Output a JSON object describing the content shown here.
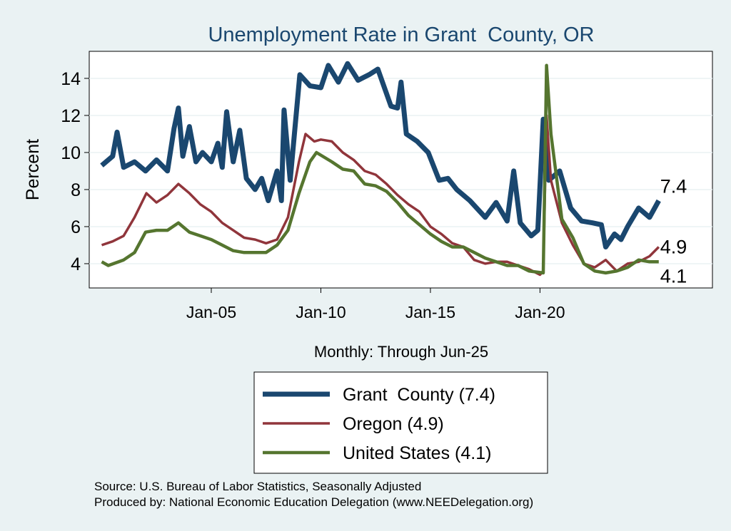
{
  "chart_data": {
    "type": "line",
    "title": "Unemployment Rate in Grant  County, OR",
    "xlabel": "Monthly: Through Jun-25",
    "ylabel": "Percent",
    "notes": [
      "Source: U.S. Bureau of Labor Statistics, Seasonally Adjusted",
      "Produced by: National Economic Education Delegation (www.NEEDelegation.org)"
    ],
    "xlim": [
      1999.43,
      2027.87
    ],
    "ylim": [
      2.69,
      15.46
    ],
    "xticks": [
      {
        "value": 2005,
        "label": "Jan-05"
      },
      {
        "value": 2010,
        "label": "Jan-10"
      },
      {
        "value": 2015,
        "label": "Jan-15"
      },
      {
        "value": 2020,
        "label": "Jan-20"
      }
    ],
    "yticks": [
      4,
      6,
      8,
      10,
      12,
      14
    ],
    "grid": true,
    "series": [
      {
        "name": "Grant  County (7.4)",
        "color": "#1a476f",
        "width": 7,
        "end_label": "7.4",
        "x": [
          2000.0,
          2000.5,
          2000.7,
          2001.0,
          2001.5,
          2002.0,
          2002.5,
          2003.0,
          2003.3,
          2003.5,
          2003.7,
          2004.0,
          2004.3,
          2004.6,
          2005.0,
          2005.3,
          2005.5,
          2005.7,
          2006.0,
          2006.3,
          2006.6,
          2007.0,
          2007.3,
          2007.6,
          2008.0,
          2008.2,
          2008.32,
          2008.6,
          2009.04,
          2009.5,
          2010.0,
          2010.34,
          2010.8,
          2011.22,
          2011.7,
          2012.2,
          2012.6,
          2013.2,
          2013.5,
          2013.66,
          2013.9,
          2014.4,
          2014.9,
          2015.4,
          2015.8,
          2016.2,
          2016.8,
          2017.5,
          2018.0,
          2018.5,
          2018.8,
          2019.1,
          2019.6,
          2019.9,
          2020.15,
          2020.4,
          2020.9,
          2021.4,
          2021.9,
          2022.4,
          2022.8,
          2023.0,
          2023.4,
          2023.7,
          2024.0,
          2024.5,
          2025.0,
          2025.42
        ],
        "values": [
          9.3,
          9.8,
          11.1,
          9.2,
          9.5,
          9.0,
          9.6,
          9.0,
          11.3,
          12.4,
          9.8,
          11.4,
          9.5,
          10.0,
          9.5,
          10.5,
          9.2,
          12.2,
          9.5,
          11.2,
          8.6,
          8.0,
          8.6,
          7.4,
          9.0,
          7.4,
          12.3,
          8.5,
          14.2,
          13.6,
          13.5,
          14.7,
          13.8,
          14.8,
          13.9,
          14.2,
          14.5,
          12.5,
          12.4,
          13.8,
          11.0,
          10.6,
          10.0,
          8.5,
          8.6,
          8.0,
          7.4,
          6.5,
          7.3,
          6.3,
          9.0,
          6.2,
          5.5,
          5.8,
          11.8,
          8.5,
          9.0,
          7.0,
          6.3,
          6.2,
          6.1,
          4.9,
          5.6,
          5.3,
          6.0,
          7.0,
          6.5,
          7.4
        ]
      },
      {
        "name": "Oregon (4.9)",
        "color": "#90353b",
        "width": 3.5,
        "end_label": "4.9",
        "x": [
          2000.0,
          2000.5,
          2001.0,
          2001.5,
          2002.04,
          2002.5,
          2003.0,
          2003.5,
          2004.0,
          2004.5,
          2005.0,
          2005.5,
          2006.0,
          2006.5,
          2007.0,
          2007.5,
          2008.0,
          2008.5,
          2009.0,
          2009.3,
          2009.7,
          2010.0,
          2010.5,
          2011.0,
          2011.5,
          2012.0,
          2012.5,
          2013.0,
          2013.5,
          2014.0,
          2014.5,
          2015.0,
          2015.5,
          2016.0,
          2016.5,
          2017.0,
          2017.5,
          2018.0,
          2018.5,
          2019.0,
          2019.5,
          2020.0,
          2020.15,
          2020.3,
          2020.5,
          2021.0,
          2021.5,
          2022.0,
          2022.5,
          2023.0,
          2023.5,
          2024.0,
          2024.5,
          2025.0,
          2025.42
        ],
        "values": [
          5.0,
          5.2,
          5.5,
          6.5,
          7.8,
          7.3,
          7.7,
          8.3,
          7.8,
          7.2,
          6.8,
          6.2,
          5.8,
          5.4,
          5.3,
          5.1,
          5.3,
          6.5,
          9.5,
          11.0,
          10.6,
          10.7,
          10.6,
          10.0,
          9.6,
          9.0,
          8.8,
          8.3,
          7.7,
          7.2,
          6.8,
          6.0,
          5.6,
          5.1,
          4.9,
          4.2,
          4.0,
          4.1,
          4.1,
          3.9,
          3.7,
          3.4,
          3.6,
          12.0,
          8.5,
          6.2,
          5.0,
          4.0,
          3.8,
          4.2,
          3.6,
          4.0,
          4.1,
          4.4,
          4.9
        ]
      },
      {
        "name": "United States (4.1)",
        "color": "#55752f",
        "width": 4.5,
        "end_label": "4.1",
        "x": [
          2000.0,
          2000.3,
          2001.0,
          2001.5,
          2002.0,
          2002.5,
          2003.0,
          2003.5,
          2004.0,
          2004.5,
          2005.0,
          2005.5,
          2006.0,
          2006.5,
          2007.0,
          2007.5,
          2008.0,
          2008.5,
          2009.0,
          2009.5,
          2009.8,
          2010.5,
          2011.0,
          2011.5,
          2012.0,
          2012.5,
          2013.0,
          2013.5,
          2014.0,
          2014.5,
          2015.0,
          2015.5,
          2016.0,
          2016.5,
          2017.0,
          2017.5,
          2018.0,
          2018.5,
          2019.0,
          2019.5,
          2020.15,
          2020.3,
          2020.5,
          2021.0,
          2021.5,
          2022.0,
          2022.5,
          2023.0,
          2023.5,
          2024.0,
          2024.5,
          2025.0,
          2025.42
        ],
        "values": [
          4.1,
          3.9,
          4.2,
          4.6,
          5.7,
          5.8,
          5.8,
          6.2,
          5.7,
          5.5,
          5.3,
          5.0,
          4.7,
          4.6,
          4.6,
          4.6,
          5.0,
          5.8,
          7.8,
          9.5,
          10.0,
          9.5,
          9.1,
          9.0,
          8.3,
          8.2,
          7.9,
          7.3,
          6.6,
          6.1,
          5.6,
          5.2,
          4.9,
          4.9,
          4.6,
          4.3,
          4.1,
          3.9,
          3.9,
          3.6,
          3.5,
          14.7,
          11.0,
          6.4,
          5.4,
          4.0,
          3.6,
          3.5,
          3.6,
          3.8,
          4.2,
          4.1,
          4.1
        ]
      }
    ]
  }
}
